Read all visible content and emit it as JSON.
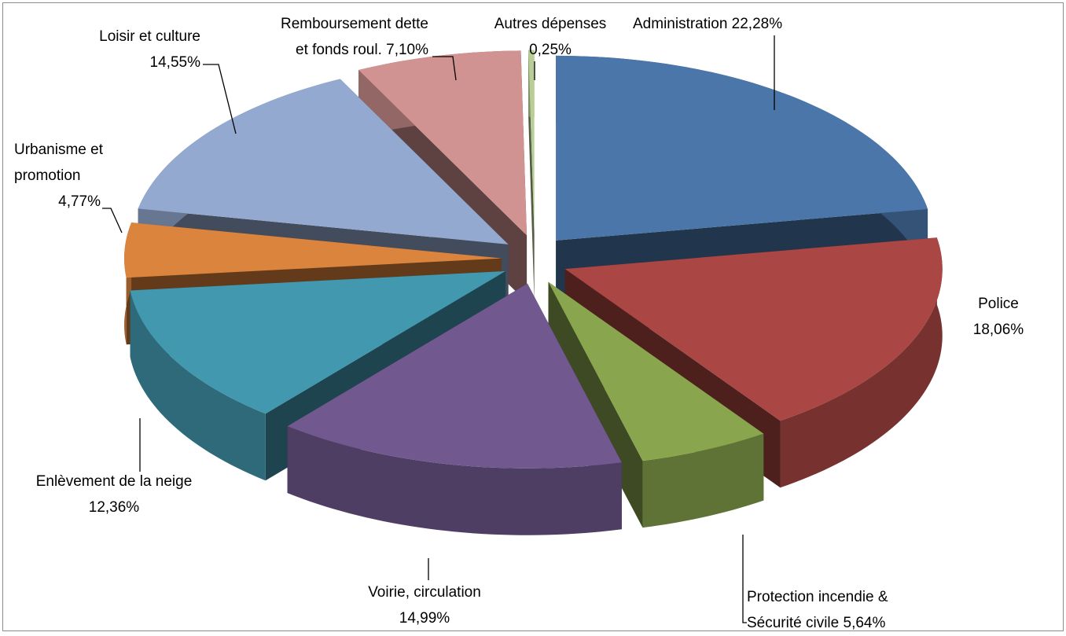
{
  "chart_data": {
    "type": "pie",
    "categories": [
      "Administration",
      "Police",
      "Protection incendie & Sécurité civile",
      "Voirie, circulation",
      "Enlèvement de la neige",
      "Urbanisme et promotion",
      "Loisir et culture",
      "Remboursement dette et fonds roul.",
      "Autres dépenses"
    ],
    "values": [
      22.28,
      18.06,
      5.64,
      14.99,
      12.36,
      4.77,
      14.55,
      7.1,
      0.25
    ],
    "value_labels": [
      "22,28%",
      "18,06%",
      "5,64%",
      "14,99%",
      "12,36%",
      "4,77%",
      "14,55%",
      "7,10%",
      "0,25%"
    ],
    "colors": [
      "#4a76aa",
      "#aa4643",
      "#89a54e",
      "#71588f",
      "#4198af",
      "#db843d",
      "#93a9cf",
      "#d19392",
      "#b9cd96"
    ]
  }
}
